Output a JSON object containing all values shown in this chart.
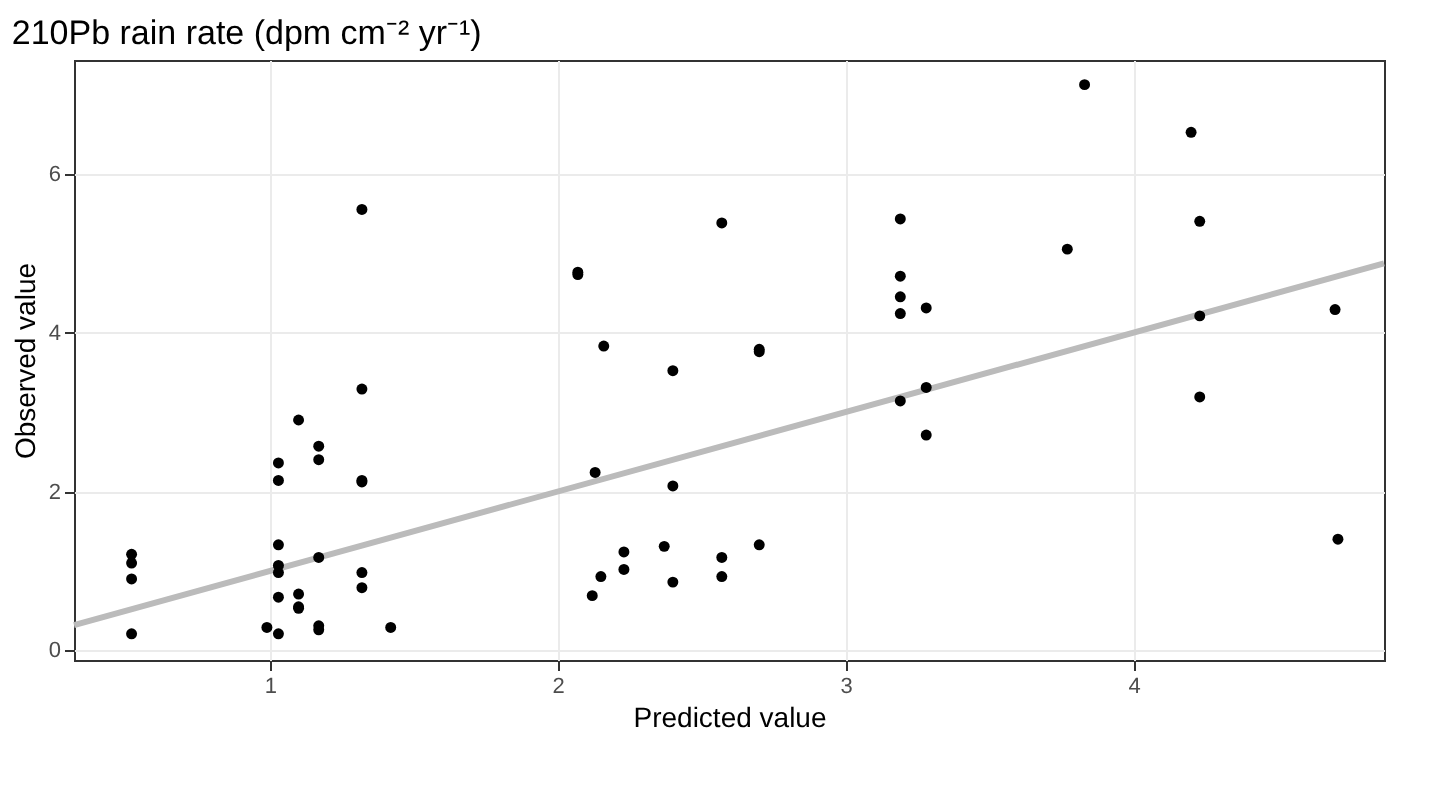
{
  "chart_data": {
    "type": "scatter",
    "title": "210Pb rain rate (dpm cm⁻² yr⁻¹)",
    "xlabel": "Predicted value",
    "ylabel": "Observed value",
    "xlim": [
      0.32,
      4.87
    ],
    "xticks": [
      1,
      2,
      3,
      4
    ],
    "ylim": [
      -0.12,
      7.43
    ],
    "yticks": [
      0,
      2,
      4,
      6
    ],
    "grid": true,
    "series": [
      {
        "color": "#000000",
        "marker": "circle",
        "x": [
          0.52,
          0.52,
          0.52,
          0.52,
          1.03,
          1.03,
          1.03,
          1.03,
          1.03,
          1.03,
          1.03,
          0.99,
          1.1,
          1.1,
          1.1,
          1.1,
          1.17,
          1.17,
          1.17,
          1.17,
          1.17,
          1.32,
          1.32,
          1.32,
          1.32,
          1.32,
          1.32,
          1.42,
          2.07,
          2.07,
          2.16,
          2.13,
          2.12,
          2.15,
          2.23,
          2.23,
          2.37,
          2.4,
          2.4,
          2.4,
          2.57,
          2.57,
          2.57,
          2.7,
          2.7,
          2.7,
          3.19,
          3.19,
          3.19,
          3.19,
          3.28,
          3.19,
          3.28,
          3.28,
          3.77,
          3.83,
          4.2,
          4.23,
          4.23,
          4.23,
          4.7,
          4.71
        ],
        "values": [
          1.21,
          1.1,
          0.9,
          0.21,
          2.36,
          2.14,
          1.33,
          1.07,
          0.98,
          0.67,
          0.21,
          0.29,
          2.9,
          0.71,
          0.55,
          0.53,
          2.57,
          2.4,
          1.17,
          0.31,
          0.26,
          5.55,
          3.29,
          2.14,
          2.12,
          0.98,
          0.79,
          0.29,
          4.76,
          4.73,
          3.83,
          2.24,
          0.69,
          0.93,
          1.02,
          1.24,
          1.31,
          3.52,
          2.07,
          0.86,
          5.38,
          1.17,
          0.93,
          3.79,
          3.76,
          1.33,
          5.43,
          4.71,
          4.45,
          4.24,
          4.31,
          3.14,
          3.31,
          2.71,
          5.05,
          7.12,
          6.52,
          5.4,
          4.21,
          3.19,
          4.29,
          1.4
        ]
      },
      {
        "type": "line",
        "color": "#bbbbbb",
        "x": [
          0.32,
          4.87
        ],
        "values": [
          0.32,
          4.87
        ]
      }
    ]
  }
}
